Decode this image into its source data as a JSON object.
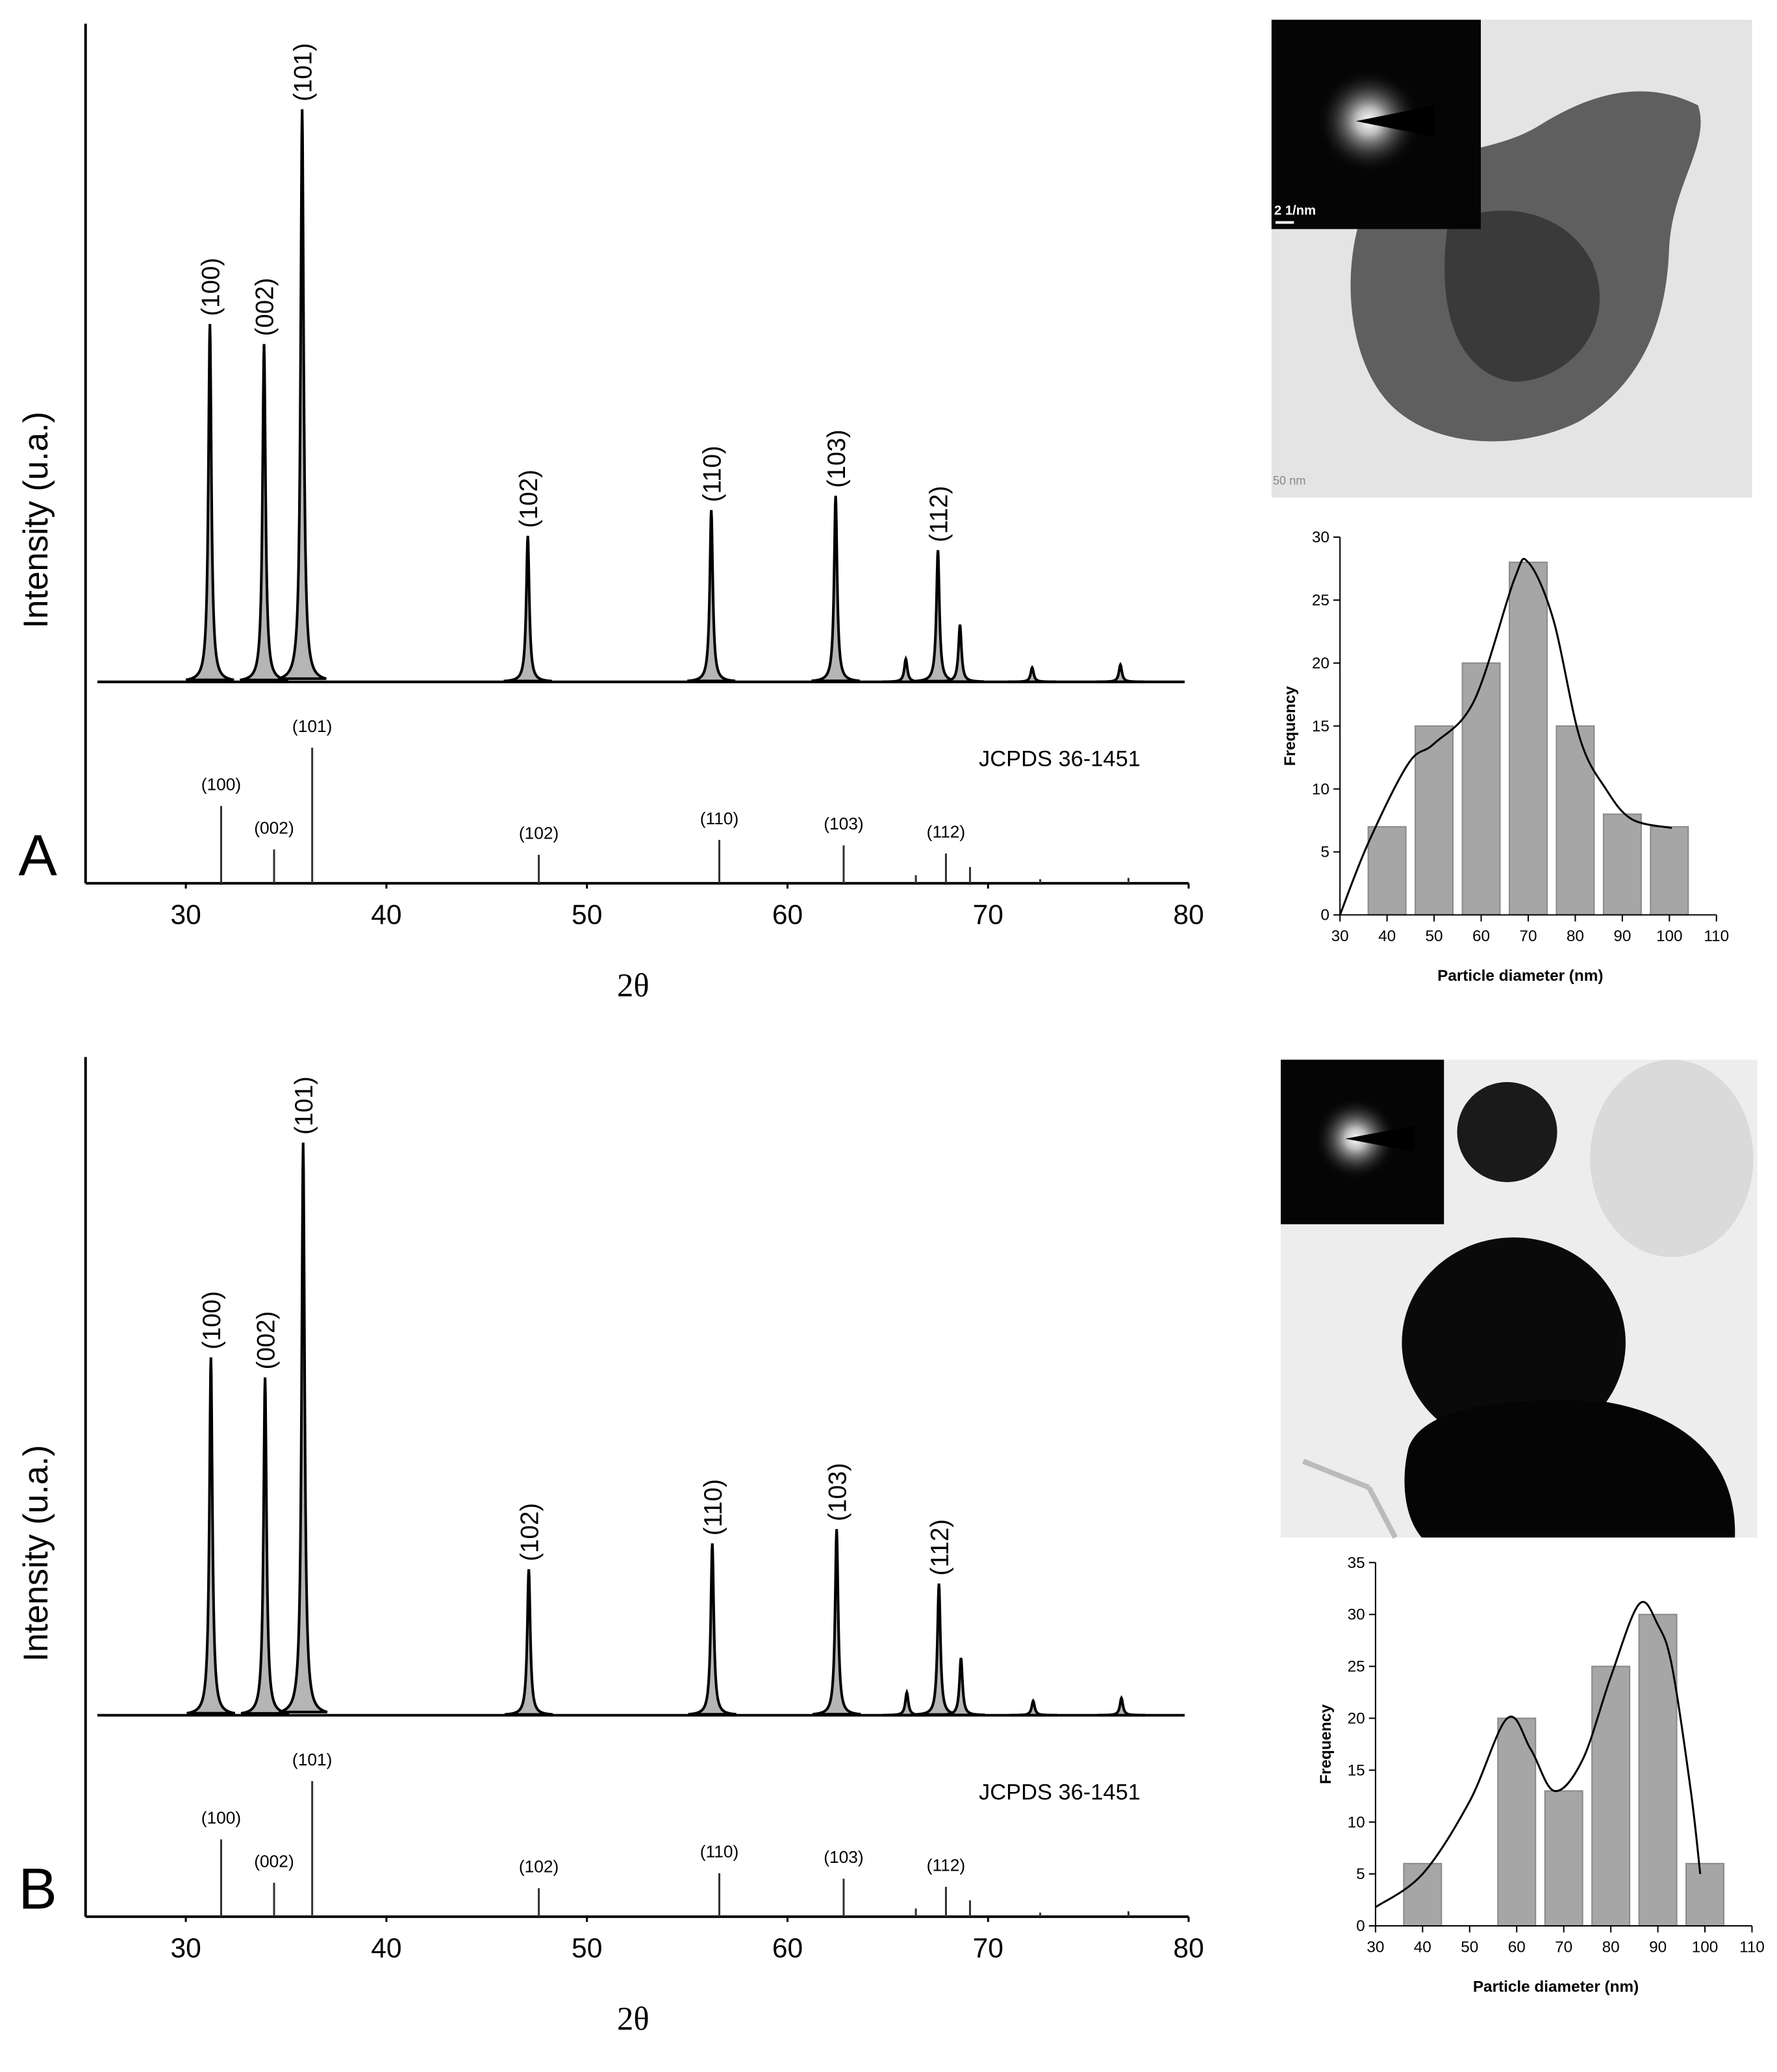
{
  "chart_data": [
    {
      "type": "xrd",
      "panel_label": "A",
      "xlabel": "2θ",
      "ylabel": "Intensity (u.a.)",
      "xlim": [
        25,
        80
      ],
      "xticks": [
        30,
        40,
        50,
        60,
        70,
        80
      ],
      "peaks": {
        "x": [
          31.2,
          33.9,
          35.8,
          47.05,
          56.2,
          62.4,
          65.9,
          67.5,
          68.6,
          72.2,
          76.6
        ],
        "values": [
          62.5,
          59,
          100,
          25.5,
          30,
          32.5,
          4,
          23,
          10,
          2.5,
          3
        ],
        "labels": [
          "(100)",
          "(002)",
          "(101)",
          "(102)",
          "(110)",
          "(103)",
          null,
          "(112)",
          null,
          null,
          null
        ]
      },
      "reference": {
        "name": "JCPDS 36-1451",
        "x": [
          31.76,
          34.4,
          36.3,
          47.6,
          56.6,
          62.8,
          66.4,
          67.9,
          69.1,
          72.6,
          77.0
        ],
        "values": [
          57,
          25,
          100,
          21,
          32,
          28,
          6,
          22,
          12,
          3,
          4
        ],
        "labels": [
          "(100)",
          "(002)",
          "(101)",
          "(102)",
          "(110)",
          "(103)",
          null,
          "(112)",
          null,
          null,
          null
        ]
      }
    },
    {
      "type": "xrd",
      "panel_label": "B",
      "xlabel": "2θ",
      "ylabel": "Intensity (u.a.)",
      "xlim": [
        25,
        80
      ],
      "xticks": [
        30,
        40,
        50,
        60,
        70,
        80
      ],
      "peaks": {
        "x": [
          31.25,
          33.95,
          35.85,
          47.1,
          56.25,
          62.45,
          65.95,
          67.55,
          68.65,
          72.25,
          76.65
        ],
        "values": [
          62.5,
          59,
          100,
          25.5,
          30,
          32.5,
          4,
          23,
          10,
          2.5,
          3
        ],
        "labels": [
          "(100)",
          "(002)",
          "(101)",
          "(102)",
          "(110)",
          "(103)",
          null,
          "(112)",
          null,
          null,
          null
        ]
      },
      "reference": {
        "name": "JCPDS 36-1451",
        "x": [
          31.76,
          34.4,
          36.3,
          47.6,
          56.6,
          62.8,
          66.4,
          67.9,
          69.1,
          72.6,
          77.0
        ],
        "values": [
          57,
          25,
          100,
          21,
          32,
          28,
          6,
          22,
          12,
          3,
          4
        ],
        "labels": [
          "(100)",
          "(002)",
          "(101)",
          "(102)",
          "(110)",
          "(103)",
          null,
          "(112)",
          null,
          null,
          null
        ]
      }
    },
    {
      "type": "bar",
      "xlabel": "Particle diameter (nm)",
      "ylabel": "Frequency",
      "xlim": [
        30,
        110
      ],
      "xticks": [
        30,
        40,
        50,
        60,
        70,
        80,
        90,
        100,
        110
      ],
      "ylim": [
        0,
        30
      ],
      "yticks": [
        0,
        5,
        10,
        15,
        20,
        25,
        30
      ],
      "x": [
        40,
        50,
        60,
        70,
        80,
        90,
        100
      ],
      "values": [
        7,
        15,
        20,
        28,
        15,
        8,
        7
      ],
      "color": "#a6a6a6",
      "fit": {
        "x": [
          30,
          36,
          44.5,
          50,
          58.5,
          67,
          70,
          75.3,
          81,
          86.5,
          92,
          100.5
        ],
        "values": [
          0,
          5.7,
          12,
          13.6,
          17,
          26.6,
          28,
          23.5,
          14,
          10,
          7.6,
          6.9
        ]
      }
    },
    {
      "type": "bar",
      "xlabel": "Particle diameter (nm)",
      "ylabel": "Frequency",
      "xlim": [
        30,
        110
      ],
      "xticks": [
        30,
        40,
        50,
        60,
        70,
        80,
        90,
        100,
        110
      ],
      "ylim": [
        0,
        35
      ],
      "yticks": [
        0,
        5,
        10,
        15,
        20,
        25,
        30,
        35
      ],
      "x": [
        40,
        60,
        70,
        80,
        90,
        100
      ],
      "values": [
        6,
        20,
        13,
        25,
        30,
        6
      ],
      "color": "#a6a6a6",
      "fit": {
        "x": [
          30,
          40,
          50,
          58,
          63,
          68,
          74,
          80,
          86,
          90,
          93,
          97,
          99
        ],
        "values": [
          1.8,
          5,
          12,
          20,
          17,
          13,
          16,
          24,
          31,
          29,
          25,
          13,
          5
        ]
      }
    }
  ],
  "images": {
    "a_saed_scale": "2 1/nm",
    "a_tem_scale": "50 nm"
  }
}
